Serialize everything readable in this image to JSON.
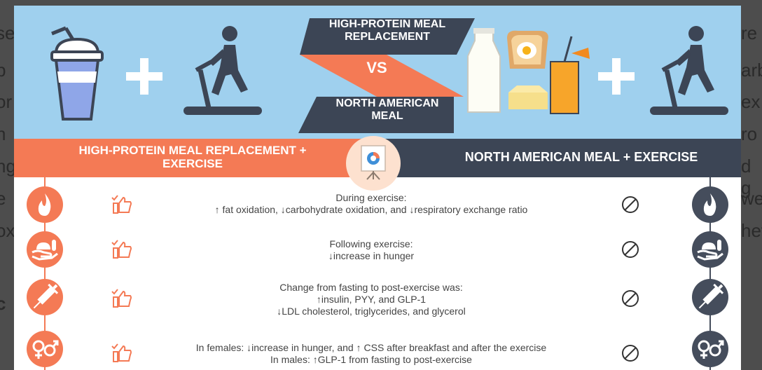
{
  "banner": {
    "title_top": [
      "HIGH-PROTEIN MEAL",
      "REPLACEMENT"
    ],
    "vs": "VS",
    "title_bottom": [
      "NORTH AMERICAN",
      "MEAL"
    ]
  },
  "subheader": {
    "left": [
      "HIGH-PROTEIN MEAL REPLACEMENT +",
      "EXERCISE"
    ],
    "right": "NORTH AMERICAN MEAL + EXERCISE"
  },
  "rows": [
    {
      "lines": [
        "During exercise:",
        "↑ fat oxidation,  ↓carbohydrate oxidation, and  ↓respiratory exchange ratio"
      ],
      "icon": "flame-icon"
    },
    {
      "lines": [
        "Following exercise:",
        "↓increase in hunger"
      ],
      "icon": "hand-meal-icon"
    },
    {
      "lines": [
        "Change from fasting to post-exercise was:",
        "↑insulin, PYY, and GLP-1",
        "↓LDL cholesterol, triglycerides, and glycerol"
      ],
      "icon": "syringe-icon"
    },
    {
      "lines": [
        "In females: ↓increase in hunger, and  ↑ CSS after breakfast and after the exercise",
        "In males: ↑GLP-1 from fasting to post-exercise"
      ],
      "icon": "gender-icon"
    }
  ],
  "colors": {
    "orange": "#f47a55",
    "navy": "#3c4555",
    "sky": "#9fd0ee"
  }
}
